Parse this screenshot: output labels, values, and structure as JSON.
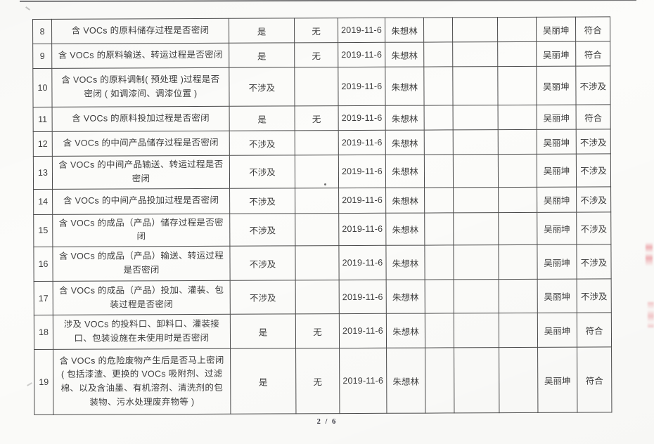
{
  "colors": {
    "paper": "#fcfcfa",
    "ink": "#3c3c3c",
    "border": "#4a4a4a",
    "stamp_red": "#e05560"
  },
  "footer": {
    "page_indicator": "2 / 6"
  },
  "table": {
    "rows": [
      {
        "no": "8",
        "item": "含 VOCs 的原料储存过程是否密闭",
        "status": "是",
        "remark": "无",
        "date": "2019-11-6",
        "inspector": "朱想林",
        "blank1": "",
        "blank2": "",
        "blank3": "",
        "reviewer": "吴丽坤",
        "conclusion": "符合"
      },
      {
        "no": "9",
        "item": "含 VOCs 的原料输送、转运过程是否密闭",
        "status": "是",
        "remark": "无",
        "date": "2019-11-6",
        "inspector": "朱想林",
        "blank1": "",
        "blank2": "",
        "blank3": "",
        "reviewer": "吴丽坤",
        "conclusion": "符合"
      },
      {
        "no": "10",
        "item": "含 VOCs 的原料调制( 预处理 )过程是否密闭 ( 如调漆间、调漆位置 )",
        "status": "不涉及",
        "remark": "",
        "date": "2019-11-6",
        "inspector": "朱想林",
        "blank1": "",
        "blank2": "",
        "blank3": "",
        "reviewer": "吴丽坤",
        "conclusion": "不涉及"
      },
      {
        "no": "11",
        "item": "含 VOCs 的原料投加过程是否密闭",
        "status": "是",
        "remark": "无",
        "date": "2019-11-6",
        "inspector": "朱想林",
        "blank1": "",
        "blank2": "",
        "blank3": "",
        "reviewer": "吴丽坤",
        "conclusion": "符合"
      },
      {
        "no": "12",
        "item": "含 VOCs 的中间产品储存过程是否密闭",
        "status": "不涉及",
        "remark": "",
        "date": "2019-11-6",
        "inspector": "朱想林",
        "blank1": "",
        "blank2": "",
        "blank3": "",
        "reviewer": "吴丽坤",
        "conclusion": "不涉及"
      },
      {
        "no": "13",
        "item": "含 VOCs 的中间产品输送、转运过程是否密闭",
        "status": "不涉及",
        "remark": "",
        "date": "2019-11-6",
        "inspector": "朱想林",
        "blank1": "",
        "blank2": "",
        "blank3": "",
        "reviewer": "吴丽坤",
        "conclusion": "不涉及"
      },
      {
        "no": "14",
        "item": "含 VOCs 的中间产品投加过程是否密闭",
        "status": "不涉及",
        "remark": "",
        "date": "2019-11-6",
        "inspector": "朱想林",
        "blank1": "",
        "blank2": "",
        "blank3": "",
        "reviewer": "吴丽坤",
        "conclusion": "不涉及"
      },
      {
        "no": "15",
        "item": "含 VOCs 的成品（产品）储存过程是否密闭",
        "status": "不涉及",
        "remark": "",
        "date": "2019-11-6",
        "inspector": "朱想林",
        "blank1": "",
        "blank2": "",
        "blank3": "",
        "reviewer": "吴丽坤",
        "conclusion": "不涉及"
      },
      {
        "no": "16",
        "item": "含 VOCs 的成品（产品）输送、转运过程是否密闭",
        "status": "不涉及",
        "remark": "",
        "date": "2019-11-6",
        "inspector": "朱想林",
        "blank1": "",
        "blank2": "",
        "blank3": "",
        "reviewer": "吴丽坤",
        "conclusion": "不涉及"
      },
      {
        "no": "17",
        "item": "含 VOCs 的成品（产品）投加、灌装、包装过程是否密闭",
        "status": "不涉及",
        "remark": "",
        "date": "2019-11-6",
        "inspector": "朱想林",
        "blank1": "",
        "blank2": "",
        "blank3": "",
        "reviewer": "吴丽坤",
        "conclusion": "不涉及"
      },
      {
        "no": "18",
        "item": "涉及 VOCs 的投料口、卸料口、灌装接口、包装设施在未使用时是否密闭",
        "status": "是",
        "remark": "无",
        "date": "2019-11-6",
        "inspector": "朱想林",
        "blank1": "",
        "blank2": "",
        "blank3": "",
        "reviewer": "吴丽坤",
        "conclusion": "符合"
      },
      {
        "no": "19",
        "item": "含 VOCs 的危险废物产生后是否马上密闭( 包括漆渣、更换的 VOCs 吸附剂、过滤棉、以及含油墨、有机溶剂、清洗剂的包装物、污水处理废弃物等 )",
        "status": "是",
        "remark": "无",
        "date": "2019-11-6",
        "inspector": "朱想林",
        "blank1": "",
        "blank2": "",
        "blank3": "",
        "reviewer": "吴丽坤",
        "conclusion": "符合"
      }
    ]
  }
}
